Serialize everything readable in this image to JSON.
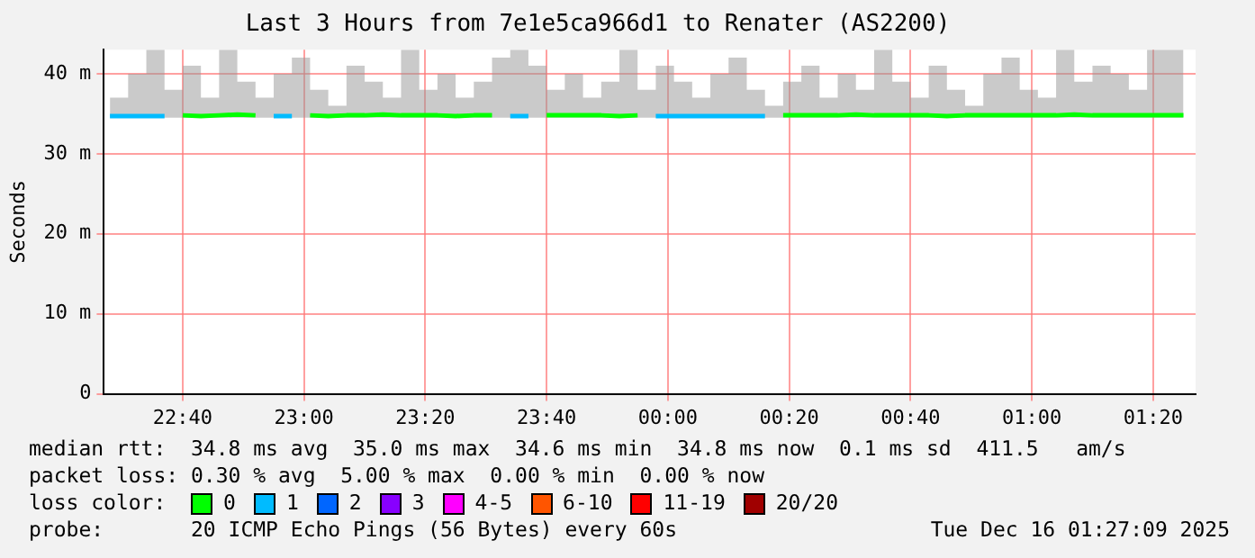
{
  "chart_data": {
    "type": "line",
    "title": "Last 3 Hours from 7e1e5ca966d1 to Renater (AS2200)",
    "ylabel": "Seconds",
    "legend_title": "loss color:",
    "legend": "bottom",
    "grid": true,
    "x": [
      "2025-12-15T22:28",
      "2025-12-15T22:31",
      "2025-12-15T22:34",
      "2025-12-15T22:37",
      "2025-12-15T22:40",
      "2025-12-15T22:43",
      "2025-12-15T22:46",
      "2025-12-15T22:49",
      "2025-12-15T22:52",
      "2025-12-15T22:55",
      "2025-12-15T22:58",
      "2025-12-15T23:01",
      "2025-12-15T23:04",
      "2025-12-15T23:07",
      "2025-12-15T23:10",
      "2025-12-15T23:13",
      "2025-12-15T23:16",
      "2025-12-15T23:19",
      "2025-12-15T23:22",
      "2025-12-15T23:25",
      "2025-12-15T23:28",
      "2025-12-15T23:31",
      "2025-12-15T23:34",
      "2025-12-15T23:37",
      "2025-12-15T23:40",
      "2025-12-15T23:43",
      "2025-12-15T23:46",
      "2025-12-15T23:49",
      "2025-12-15T23:52",
      "2025-12-15T23:55",
      "2025-12-15T23:58",
      "2025-12-16T00:01",
      "2025-12-16T00:04",
      "2025-12-16T00:07",
      "2025-12-16T00:10",
      "2025-12-16T00:13",
      "2025-12-16T00:16",
      "2025-12-16T00:19",
      "2025-12-16T00:22",
      "2025-12-16T00:25",
      "2025-12-16T00:28",
      "2025-12-16T00:31",
      "2025-12-16T00:34",
      "2025-12-16T00:37",
      "2025-12-16T00:40",
      "2025-12-16T00:43",
      "2025-12-16T00:46",
      "2025-12-16T00:49",
      "2025-12-16T00:52",
      "2025-12-16T00:55",
      "2025-12-16T00:58",
      "2025-12-16T01:01",
      "2025-12-16T01:04",
      "2025-12-16T01:07",
      "2025-12-16T01:10",
      "2025-12-16T01:13",
      "2025-12-16T01:16",
      "2025-12-16T01:19",
      "2025-12-16T01:22",
      "2025-12-16T01:25"
    ],
    "xlim": [
      "2025-12-15T22:27",
      "2025-12-16T01:27"
    ],
    "xticks": [
      {
        "value": "2025-12-15T22:40",
        "label": "22:40"
      },
      {
        "value": "2025-12-15T23:00",
        "label": "23:00"
      },
      {
        "value": "2025-12-15T23:20",
        "label": "23:20"
      },
      {
        "value": "2025-12-15T23:40",
        "label": "23:40"
      },
      {
        "value": "2025-12-16T00:00",
        "label": "00:00"
      },
      {
        "value": "2025-12-16T00:20",
        "label": "00:20"
      },
      {
        "value": "2025-12-16T00:40",
        "label": "00:40"
      },
      {
        "value": "2025-12-16T01:00",
        "label": "01:00"
      },
      {
        "value": "2025-12-16T01:20",
        "label": "01:20"
      }
    ],
    "ylim": [
      0,
      43
    ],
    "yticks": [
      0,
      {
        "value": 10,
        "label": "10 m"
      },
      {
        "value": 20,
        "label": "20 m"
      },
      {
        "value": 30,
        "label": "30 m"
      },
      {
        "value": 40,
        "label": "40 m"
      }
    ],
    "series": [
      {
        "name": "0",
        "color": "#00ff00",
        "values": [
          null,
          null,
          null,
          null,
          34.8,
          34.7,
          34.8,
          34.9,
          34.8,
          null,
          null,
          34.8,
          34.7,
          34.8,
          34.8,
          34.9,
          34.8,
          34.8,
          34.8,
          34.7,
          34.8,
          34.8,
          null,
          null,
          34.8,
          34.8,
          34.8,
          34.8,
          34.7,
          34.8,
          null,
          null,
          null,
          null,
          null,
          null,
          null,
          34.8,
          34.8,
          34.8,
          34.8,
          34.9,
          34.8,
          34.8,
          34.8,
          34.8,
          34.7,
          34.8,
          34.8,
          34.8,
          34.8,
          34.8,
          34.8,
          34.9,
          34.8,
          34.8,
          34.8,
          34.8,
          34.8,
          34.8
        ],
        "lower": [
          34.5,
          34.5,
          34.5,
          34.5,
          34.5,
          34.5,
          34.5,
          34.5,
          34.5,
          34.5,
          34.5,
          34.5,
          34.5,
          34.5,
          34.5,
          34.5,
          34.5,
          34.5,
          34.5,
          34.5,
          34.5,
          34.5,
          34.5,
          34.5,
          34.5,
          34.5,
          34.5,
          34.5,
          34.5,
          34.5,
          34.5,
          34.5,
          34.5,
          34.5,
          34.5,
          34.5,
          34.5,
          34.5,
          34.5,
          34.5,
          34.5,
          34.5,
          34.5,
          34.5,
          34.5,
          34.5,
          34.5,
          34.5,
          34.5,
          34.5,
          34.5,
          34.5,
          34.5,
          34.5,
          34.5,
          34.5,
          34.5,
          34.5,
          34.5,
          34.5
        ],
        "upper": [
          37,
          40,
          43,
          38,
          41,
          37,
          43,
          39,
          37,
          40,
          42,
          38,
          36,
          41,
          39,
          37,
          43,
          38,
          40,
          37,
          39,
          42,
          43,
          41,
          38,
          40,
          37,
          39,
          43,
          38,
          41,
          39,
          37,
          40,
          42,
          38,
          36,
          39,
          41,
          37,
          40,
          38,
          43,
          39,
          37,
          41,
          38,
          36,
          40,
          42,
          38,
          37,
          43,
          39,
          41,
          40,
          38,
          43,
          43,
          42
        ]
      },
      {
        "name": "1",
        "color": "#00bbff",
        "values": [
          34.7,
          34.7,
          34.7,
          34.7,
          null,
          null,
          null,
          null,
          null,
          34.7,
          34.7,
          null,
          null,
          null,
          null,
          null,
          null,
          null,
          null,
          null,
          null,
          null,
          34.7,
          34.7,
          null,
          null,
          null,
          null,
          null,
          null,
          34.7,
          34.7,
          34.7,
          34.7,
          34.7,
          34.7,
          34.7,
          null,
          null,
          null,
          null,
          null,
          null,
          null,
          null,
          null,
          null,
          null,
          null,
          null,
          null,
          null,
          null,
          null,
          null,
          null,
          null,
          null,
          null,
          null
        ]
      },
      {
        "name": "2",
        "color": "#0066ff",
        "values": [
          null,
          null,
          null,
          null,
          null,
          null,
          null,
          null,
          null,
          null,
          null,
          null,
          null,
          null,
          null,
          null,
          null,
          null,
          null,
          null,
          null,
          null,
          null,
          null,
          null,
          null,
          null,
          null,
          null,
          null,
          null,
          null,
          null,
          null,
          null,
          null,
          null,
          null,
          null,
          null,
          null,
          null,
          null,
          null,
          null,
          null,
          null,
          null,
          null,
          null,
          null,
          null,
          null,
          null,
          null,
          null,
          null,
          null,
          null,
          null
        ]
      },
      {
        "name": "3",
        "color": "#8800ff",
        "values": [
          null,
          null,
          null,
          null,
          null,
          null,
          null,
          null,
          null,
          null,
          null,
          null,
          null,
          null,
          null,
          null,
          null,
          null,
          null,
          null,
          null,
          null,
          null,
          null,
          null,
          null,
          null,
          null,
          null,
          null,
          null,
          null,
          null,
          null,
          null,
          null,
          null,
          null,
          null,
          null,
          null,
          null,
          null,
          null,
          null,
          null,
          null,
          null,
          null,
          null,
          null,
          null,
          null,
          null,
          null,
          null,
          null,
          null,
          null,
          null
        ]
      },
      {
        "name": "4-5",
        "color": "#ff00ff",
        "values": [
          null,
          null,
          null,
          null,
          null,
          null,
          null,
          null,
          null,
          null,
          null,
          null,
          null,
          null,
          null,
          null,
          null,
          null,
          null,
          null,
          null,
          null,
          null,
          null,
          null,
          null,
          null,
          null,
          null,
          null,
          null,
          null,
          null,
          null,
          null,
          null,
          null,
          null,
          null,
          null,
          null,
          null,
          null,
          null,
          null,
          null,
          null,
          null,
          null,
          null,
          null,
          null,
          null,
          null,
          null,
          null,
          null,
          null,
          null,
          null
        ]
      },
      {
        "name": "6-10",
        "color": "#ff5500",
        "values": [
          null,
          null,
          null,
          null,
          null,
          null,
          null,
          null,
          null,
          null,
          null,
          null,
          null,
          null,
          null,
          null,
          null,
          null,
          null,
          null,
          null,
          null,
          null,
          null,
          null,
          null,
          null,
          null,
          null,
          null,
          null,
          null,
          null,
          null,
          null,
          null,
          null,
          null,
          null,
          null,
          null,
          null,
          null,
          null,
          null,
          null,
          null,
          null,
          null,
          null,
          null,
          null,
          null,
          null,
          null,
          null,
          null,
          null,
          null,
          null
        ]
      },
      {
        "name": "11-19",
        "color": "#ff0000",
        "values": [
          null,
          null,
          null,
          null,
          null,
          null,
          null,
          null,
          null,
          null,
          null,
          null,
          null,
          null,
          null,
          null,
          null,
          null,
          null,
          null,
          null,
          null,
          null,
          null,
          null,
          null,
          null,
          null,
          null,
          null,
          null,
          null,
          null,
          null,
          null,
          null,
          null,
          null,
          null,
          null,
          null,
          null,
          null,
          null,
          null,
          null,
          null,
          null,
          null,
          null,
          null,
          null,
          null,
          null,
          null,
          null,
          null,
          null,
          null,
          null
        ]
      },
      {
        "name": "20/20",
        "color": "#a00000",
        "values": [
          null,
          null,
          null,
          null,
          null,
          null,
          null,
          null,
          null,
          null,
          null,
          null,
          null,
          null,
          null,
          null,
          null,
          null,
          null,
          null,
          null,
          null,
          null,
          null,
          null,
          null,
          null,
          null,
          null,
          null,
          null,
          null,
          null,
          null,
          null,
          null,
          null,
          null,
          null,
          null,
          null,
          null,
          null,
          null,
          null,
          null,
          null,
          null,
          null,
          null,
          null,
          null,
          null,
          null,
          null,
          null,
          null,
          null,
          null,
          null
        ]
      }
    ],
    "annotations": [
      "median rtt:  34.8 ms avg  35.0 ms max  34.6 ms min  34.8 ms now  0.1 ms sd  411.5   am/s",
      "packet loss: 0.30 % avg  5.00 % max  0.00 % min  0.00 % now",
      "probe:       20 ICMP Echo Pings (56 Bytes) every 60s",
      "Tue Dec 16 01:27:09 2025"
    ]
  }
}
